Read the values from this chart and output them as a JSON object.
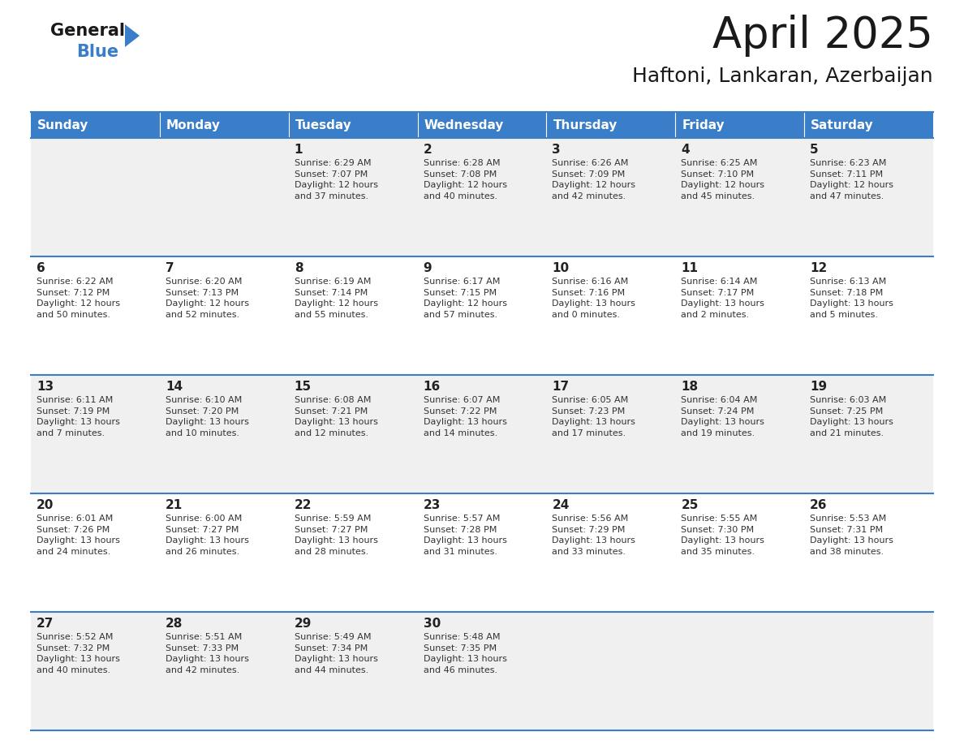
{
  "title": "April 2025",
  "subtitle": "Haftoni, Lankaran, Azerbaijan",
  "header_bg_color": "#3A7DC9",
  "header_text_color": "#FFFFFF",
  "odd_row_bg": "#F0F0F0",
  "even_row_bg": "#FFFFFF",
  "border_color": "#3A7DC9",
  "day_headers": [
    "Sunday",
    "Monday",
    "Tuesday",
    "Wednesday",
    "Thursday",
    "Friday",
    "Saturday"
  ],
  "weeks": [
    [
      {
        "day": null,
        "info": null
      },
      {
        "day": null,
        "info": null
      },
      {
        "day": 1,
        "info": "Sunrise: 6:29 AM\nSunset: 7:07 PM\nDaylight: 12 hours\nand 37 minutes."
      },
      {
        "day": 2,
        "info": "Sunrise: 6:28 AM\nSunset: 7:08 PM\nDaylight: 12 hours\nand 40 minutes."
      },
      {
        "day": 3,
        "info": "Sunrise: 6:26 AM\nSunset: 7:09 PM\nDaylight: 12 hours\nand 42 minutes."
      },
      {
        "day": 4,
        "info": "Sunrise: 6:25 AM\nSunset: 7:10 PM\nDaylight: 12 hours\nand 45 minutes."
      },
      {
        "day": 5,
        "info": "Sunrise: 6:23 AM\nSunset: 7:11 PM\nDaylight: 12 hours\nand 47 minutes."
      }
    ],
    [
      {
        "day": 6,
        "info": "Sunrise: 6:22 AM\nSunset: 7:12 PM\nDaylight: 12 hours\nand 50 minutes."
      },
      {
        "day": 7,
        "info": "Sunrise: 6:20 AM\nSunset: 7:13 PM\nDaylight: 12 hours\nand 52 minutes."
      },
      {
        "day": 8,
        "info": "Sunrise: 6:19 AM\nSunset: 7:14 PM\nDaylight: 12 hours\nand 55 minutes."
      },
      {
        "day": 9,
        "info": "Sunrise: 6:17 AM\nSunset: 7:15 PM\nDaylight: 12 hours\nand 57 minutes."
      },
      {
        "day": 10,
        "info": "Sunrise: 6:16 AM\nSunset: 7:16 PM\nDaylight: 13 hours\nand 0 minutes."
      },
      {
        "day": 11,
        "info": "Sunrise: 6:14 AM\nSunset: 7:17 PM\nDaylight: 13 hours\nand 2 minutes."
      },
      {
        "day": 12,
        "info": "Sunrise: 6:13 AM\nSunset: 7:18 PM\nDaylight: 13 hours\nand 5 minutes."
      }
    ],
    [
      {
        "day": 13,
        "info": "Sunrise: 6:11 AM\nSunset: 7:19 PM\nDaylight: 13 hours\nand 7 minutes."
      },
      {
        "day": 14,
        "info": "Sunrise: 6:10 AM\nSunset: 7:20 PM\nDaylight: 13 hours\nand 10 minutes."
      },
      {
        "day": 15,
        "info": "Sunrise: 6:08 AM\nSunset: 7:21 PM\nDaylight: 13 hours\nand 12 minutes."
      },
      {
        "day": 16,
        "info": "Sunrise: 6:07 AM\nSunset: 7:22 PM\nDaylight: 13 hours\nand 14 minutes."
      },
      {
        "day": 17,
        "info": "Sunrise: 6:05 AM\nSunset: 7:23 PM\nDaylight: 13 hours\nand 17 minutes."
      },
      {
        "day": 18,
        "info": "Sunrise: 6:04 AM\nSunset: 7:24 PM\nDaylight: 13 hours\nand 19 minutes."
      },
      {
        "day": 19,
        "info": "Sunrise: 6:03 AM\nSunset: 7:25 PM\nDaylight: 13 hours\nand 21 minutes."
      }
    ],
    [
      {
        "day": 20,
        "info": "Sunrise: 6:01 AM\nSunset: 7:26 PM\nDaylight: 13 hours\nand 24 minutes."
      },
      {
        "day": 21,
        "info": "Sunrise: 6:00 AM\nSunset: 7:27 PM\nDaylight: 13 hours\nand 26 minutes."
      },
      {
        "day": 22,
        "info": "Sunrise: 5:59 AM\nSunset: 7:27 PM\nDaylight: 13 hours\nand 28 minutes."
      },
      {
        "day": 23,
        "info": "Sunrise: 5:57 AM\nSunset: 7:28 PM\nDaylight: 13 hours\nand 31 minutes."
      },
      {
        "day": 24,
        "info": "Sunrise: 5:56 AM\nSunset: 7:29 PM\nDaylight: 13 hours\nand 33 minutes."
      },
      {
        "day": 25,
        "info": "Sunrise: 5:55 AM\nSunset: 7:30 PM\nDaylight: 13 hours\nand 35 minutes."
      },
      {
        "day": 26,
        "info": "Sunrise: 5:53 AM\nSunset: 7:31 PM\nDaylight: 13 hours\nand 38 minutes."
      }
    ],
    [
      {
        "day": 27,
        "info": "Sunrise: 5:52 AM\nSunset: 7:32 PM\nDaylight: 13 hours\nand 40 minutes."
      },
      {
        "day": 28,
        "info": "Sunrise: 5:51 AM\nSunset: 7:33 PM\nDaylight: 13 hours\nand 42 minutes."
      },
      {
        "day": 29,
        "info": "Sunrise: 5:49 AM\nSunset: 7:34 PM\nDaylight: 13 hours\nand 44 minutes."
      },
      {
        "day": 30,
        "info": "Sunrise: 5:48 AM\nSunset: 7:35 PM\nDaylight: 13 hours\nand 46 minutes."
      },
      {
        "day": null,
        "info": null
      },
      {
        "day": null,
        "info": null
      },
      {
        "day": null,
        "info": null
      }
    ]
  ],
  "logo_triangle_color": "#3A7DC9",
  "fig_width": 11.88,
  "fig_height": 9.18,
  "dpi": 100
}
